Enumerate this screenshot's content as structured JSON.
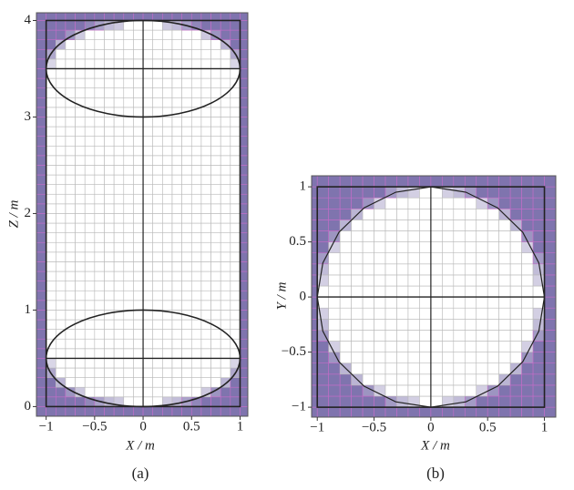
{
  "chart_data": [
    {
      "type": "mesh",
      "domain": "capsule",
      "label": "(a)",
      "xlabel": "X / m",
      "ylabel": "Z / m",
      "xlim": [
        -1.1,
        1.08
      ],
      "ylim": [
        -0.1,
        4.08
      ],
      "xticks": [
        {
          "value": -1,
          "label": "−1"
        },
        {
          "value": -0.5,
          "label": "−0.5"
        },
        0,
        0.5,
        1
      ],
      "yticks": [
        0,
        1,
        2,
        3,
        4
      ],
      "grid_step": 0.1,
      "frame": [
        -1,
        1,
        0,
        4
      ],
      "ellipses": [
        {
          "cx": 0,
          "cy": 3.5,
          "rx": 1,
          "ry": 0.5
        },
        {
          "cx": 0,
          "cy": 0.5,
          "rx": 1,
          "ry": 0.5
        }
      ],
      "hlines": [
        3.5,
        0.5
      ],
      "vlines": [
        0
      ],
      "fill_color": "#7f74ae",
      "line_color": "#222222"
    },
    {
      "type": "mesh",
      "domain": "circle",
      "label": "(b)",
      "xlabel": "X / m",
      "ylabel": "Y / m",
      "xlim": [
        -1.05,
        1.1
      ],
      "ylim": [
        -1.09,
        1.1
      ],
      "xticks": [
        {
          "value": -1,
          "label": "−1"
        },
        {
          "value": -0.5,
          "label": "−0.5"
        },
        0,
        0.5,
        1
      ],
      "yticks": [
        {
          "value": -1,
          "label": "−1"
        },
        {
          "value": -0.5,
          "label": "−0.5"
        },
        0,
        0.5,
        1
      ],
      "grid_step": 0.1,
      "frame": [
        -1,
        1,
        -1,
        1
      ],
      "radius": 1,
      "polygon_sides": 20,
      "hlines": [
        0
      ],
      "vlines": [
        0
      ],
      "fill_color": "#7f74ae",
      "line_color": "#222222"
    }
  ]
}
